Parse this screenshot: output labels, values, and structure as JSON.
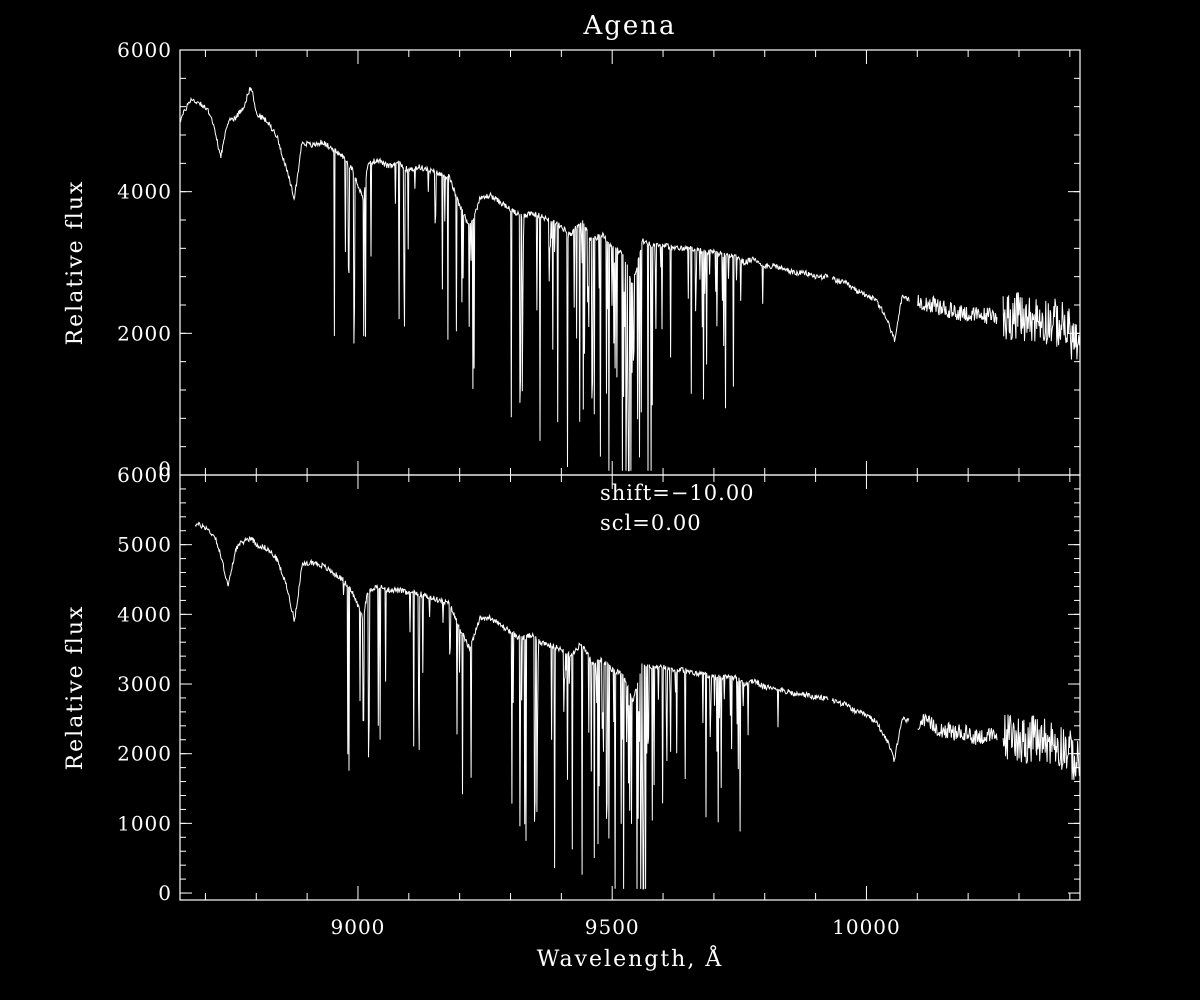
{
  "chart_data": [
    {
      "type": "line",
      "title": "Agena",
      "xlabel": "",
      "ylabel": "Relative flux",
      "xlim": [
        8650,
        10420
      ],
      "ylim": [
        0,
        6000
      ],
      "y_ticks": [
        0,
        2000,
        4000,
        6000
      ],
      "y_tick_labels": [
        "0",
        "2000",
        "4000",
        "6000"
      ],
      "x_ticks": [
        9000,
        9500,
        10000
      ],
      "x_tick_labels": [
        "",
        "",
        ""
      ],
      "grid": false,
      "series": [
        {
          "x": [
            8650,
            8670,
            8690,
            8710,
            8730,
            8745,
            8760,
            8775,
            8790,
            8800,
            8820,
            8840,
            8860,
            8875,
            8890,
            8910,
            8930,
            8950,
            8970,
            8990,
            9010,
            9020,
            9040,
            9060,
            9080,
            9100,
            9120,
            9140,
            9160,
            9180,
            9200,
            9220,
            9240,
            9260,
            9280,
            9300,
            9320,
            9340,
            9360,
            9380,
            9400,
            9420,
            9440,
            9460,
            9480,
            9500,
            9520,
            9540,
            9560,
            9580,
            9600,
            9620,
            9640,
            9660,
            9680,
            9700,
            9720,
            9740,
            9760,
            9780,
            9800,
            9820,
            9840,
            9860,
            9880,
            9900,
            9920,
            9940,
            9960,
            9980,
            10000,
            10020,
            10040,
            10055,
            10070,
            10090,
            10110,
            10130,
            10150,
            10170,
            10190,
            10210,
            10230,
            10250,
            10270,
            10290,
            10310,
            10330,
            10350,
            10370,
            10390,
            10410,
            10420
          ],
          "y": [
            5000,
            5300,
            5250,
            5100,
            4500,
            5000,
            5050,
            5200,
            5500,
            5100,
            5000,
            4800,
            4300,
            3900,
            4700,
            4650,
            4700,
            4600,
            4500,
            4300,
            3900,
            4400,
            4450,
            4350,
            4400,
            4300,
            4350,
            4300,
            4250,
            4200,
            3800,
            3500,
            3900,
            3950,
            3850,
            3750,
            3650,
            3700,
            3650,
            3600,
            3500,
            3400,
            3600,
            3300,
            3400,
            3200,
            3150,
            2700,
            3300,
            3250,
            3250,
            3200,
            3200,
            3200,
            3150,
            3150,
            3100,
            3100,
            3000,
            3050,
            2950,
            2950,
            2900,
            2850,
            2850,
            2800,
            2800,
            2750,
            2700,
            2600,
            2550,
            2450,
            2200,
            1900,
            2500,
            2450,
            2450,
            2400,
            2350,
            2300,
            2300,
            2250,
            2250,
            2250,
            2250,
            2250,
            2200,
            2200,
            2200,
            2150,
            2100,
            1900,
            1800
          ]
        }
      ]
    },
    {
      "type": "line",
      "title": "",
      "xlabel": "Wavelength, Å",
      "ylabel": "Relative flux",
      "xlim": [
        8650,
        10420
      ],
      "ylim": [
        -100,
        6000
      ],
      "y_ticks": [
        0,
        1000,
        2000,
        3000,
        4000,
        5000,
        6000
      ],
      "y_tick_labels": [
        "0",
        "1000",
        "2000",
        "3000",
        "4000",
        "5000",
        "6000"
      ],
      "x_ticks": [
        9000,
        9500,
        10000
      ],
      "x_tick_labels": [
        "9000",
        "9500",
        "10000"
      ],
      "grid": false,
      "annotations": [
        "shift=−10.00",
        "scl=0.00"
      ],
      "series": [
        {
          "x": [
            8680,
            8700,
            8720,
            8735,
            8745,
            8760,
            8775,
            8790,
            8800,
            8820,
            8840,
            8860,
            8875,
            8890,
            8910,
            8930,
            8950,
            8970,
            8990,
            9010,
            9020,
            9040,
            9060,
            9080,
            9100,
            9120,
            9140,
            9160,
            9180,
            9200,
            9220,
            9240,
            9260,
            9280,
            9300,
            9320,
            9340,
            9360,
            9380,
            9400,
            9420,
            9440,
            9460,
            9480,
            9500,
            9520,
            9540,
            9560,
            9580,
            9600,
            9620,
            9640,
            9660,
            9680,
            9700,
            9720,
            9740,
            9760,
            9780,
            9800,
            9820,
            9840,
            9860,
            9880,
            9900,
            9920,
            9940,
            9960,
            9980,
            10000,
            10020,
            10040,
            10055,
            10070,
            10090,
            10110,
            10130,
            10150,
            10170,
            10190,
            10210,
            10230,
            10250,
            10270,
            10290,
            10310,
            10330,
            10350,
            10370,
            10390,
            10410,
            10420
          ],
          "y": [
            5300,
            5250,
            5100,
            4700,
            4400,
            4950,
            5050,
            5100,
            5000,
            4950,
            4800,
            4400,
            3900,
            4700,
            4750,
            4700,
            4600,
            4500,
            4300,
            3950,
            4350,
            4400,
            4350,
            4350,
            4300,
            4300,
            4250,
            4200,
            4150,
            3800,
            3500,
            3950,
            3950,
            3850,
            3750,
            3650,
            3700,
            3600,
            3550,
            3500,
            3400,
            3600,
            3300,
            3350,
            3200,
            3150,
            2750,
            3300,
            3250,
            3250,
            3200,
            3200,
            3150,
            3150,
            3100,
            3100,
            3100,
            3000,
            3050,
            2950,
            2950,
            2900,
            2850,
            2850,
            2800,
            2800,
            2750,
            2700,
            2600,
            2550,
            2450,
            2200,
            1900,
            2500,
            2450,
            2450,
            2400,
            2350,
            2300,
            2300,
            2250,
            2250,
            2250,
            2250,
            2250,
            2200,
            2200,
            2200,
            2150,
            2100,
            1900,
            1800
          ]
        }
      ]
    }
  ]
}
